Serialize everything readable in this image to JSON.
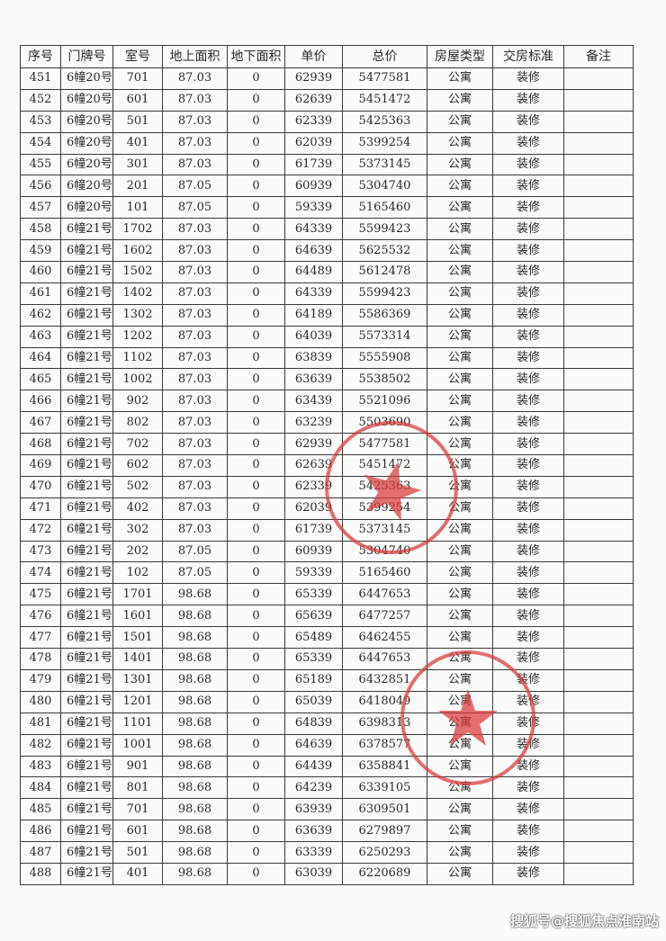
{
  "table": {
    "headers": [
      "序号",
      "门牌号",
      "室号",
      "地上面积",
      "地下面积",
      "单价",
      "总价",
      "房屋类型",
      "交房标准",
      "备注"
    ],
    "rows": [
      [
        "451",
        "6幢20号",
        "701",
        "87.03",
        "0",
        "62939",
        "5477581",
        "公寓",
        "装修",
        ""
      ],
      [
        "452",
        "6幢20号",
        "601",
        "87.03",
        "0",
        "62639",
        "5451472",
        "公寓",
        "装修",
        ""
      ],
      [
        "453",
        "6幢20号",
        "501",
        "87.03",
        "0",
        "62339",
        "5425363",
        "公寓",
        "装修",
        ""
      ],
      [
        "454",
        "6幢20号",
        "401",
        "87.03",
        "0",
        "62039",
        "5399254",
        "公寓",
        "装修",
        ""
      ],
      [
        "455",
        "6幢20号",
        "301",
        "87.03",
        "0",
        "61739",
        "5373145",
        "公寓",
        "装修",
        ""
      ],
      [
        "456",
        "6幢20号",
        "201",
        "87.05",
        "0",
        "60939",
        "5304740",
        "公寓",
        "装修",
        ""
      ],
      [
        "457",
        "6幢20号",
        "101",
        "87.05",
        "0",
        "59339",
        "5165460",
        "公寓",
        "装修",
        ""
      ],
      [
        "458",
        "6幢21号",
        "1702",
        "87.03",
        "0",
        "64339",
        "5599423",
        "公寓",
        "装修",
        ""
      ],
      [
        "459",
        "6幢21号",
        "1602",
        "87.03",
        "0",
        "64639",
        "5625532",
        "公寓",
        "装修",
        ""
      ],
      [
        "460",
        "6幢21号",
        "1502",
        "87.03",
        "0",
        "64489",
        "5612478",
        "公寓",
        "装修",
        ""
      ],
      [
        "461",
        "6幢21号",
        "1402",
        "87.03",
        "0",
        "64339",
        "5599423",
        "公寓",
        "装修",
        ""
      ],
      [
        "462",
        "6幢21号",
        "1302",
        "87.03",
        "0",
        "64189",
        "5586369",
        "公寓",
        "装修",
        ""
      ],
      [
        "463",
        "6幢21号",
        "1202",
        "87.03",
        "0",
        "64039",
        "5573314",
        "公寓",
        "装修",
        ""
      ],
      [
        "464",
        "6幢21号",
        "1102",
        "87.03",
        "0",
        "63839",
        "5555908",
        "公寓",
        "装修",
        ""
      ],
      [
        "465",
        "6幢21号",
        "1002",
        "87.03",
        "0",
        "63639",
        "5538502",
        "公寓",
        "装修",
        ""
      ],
      [
        "466",
        "6幢21号",
        "902",
        "87.03",
        "0",
        "63439",
        "5521096",
        "公寓",
        "装修",
        ""
      ],
      [
        "467",
        "6幢21号",
        "802",
        "87.03",
        "0",
        "63239",
        "5503690",
        "公寓",
        "装修",
        ""
      ],
      [
        "468",
        "6幢21号",
        "702",
        "87.03",
        "0",
        "62939",
        "5477581",
        "公寓",
        "装修",
        ""
      ],
      [
        "469",
        "6幢21号",
        "602",
        "87.03",
        "0",
        "62639",
        "5451472",
        "公寓",
        "装修",
        ""
      ],
      [
        "470",
        "6幢21号",
        "502",
        "87.03",
        "0",
        "62339",
        "5425363",
        "公寓",
        "装修",
        ""
      ],
      [
        "471",
        "6幢21号",
        "402",
        "87.03",
        "0",
        "62039",
        "5399254",
        "公寓",
        "装修",
        ""
      ],
      [
        "472",
        "6幢21号",
        "302",
        "87.03",
        "0",
        "61739",
        "5373145",
        "公寓",
        "装修",
        ""
      ],
      [
        "473",
        "6幢21号",
        "202",
        "87.05",
        "0",
        "60939",
        "5304740",
        "公寓",
        "装修",
        ""
      ],
      [
        "474",
        "6幢21号",
        "102",
        "87.05",
        "0",
        "59339",
        "5165460",
        "公寓",
        "装修",
        ""
      ],
      [
        "475",
        "6幢21号",
        "1701",
        "98.68",
        "0",
        "65339",
        "6447653",
        "公寓",
        "装修",
        ""
      ],
      [
        "476",
        "6幢21号",
        "1601",
        "98.68",
        "0",
        "65639",
        "6477257",
        "公寓",
        "装修",
        ""
      ],
      [
        "477",
        "6幢21号",
        "1501",
        "98.68",
        "0",
        "65489",
        "6462455",
        "公寓",
        "装修",
        ""
      ],
      [
        "478",
        "6幢21号",
        "1401",
        "98.68",
        "0",
        "65339",
        "6447653",
        "公寓",
        "装修",
        ""
      ],
      [
        "479",
        "6幢21号",
        "1301",
        "98.68",
        "0",
        "65189",
        "6432851",
        "公寓",
        "装修",
        ""
      ],
      [
        "480",
        "6幢21号",
        "1201",
        "98.68",
        "0",
        "65039",
        "6418049",
        "公寓",
        "装修",
        ""
      ],
      [
        "481",
        "6幢21号",
        "1101",
        "98.68",
        "0",
        "64839",
        "6398313",
        "公寓",
        "装修",
        ""
      ],
      [
        "482",
        "6幢21号",
        "1001",
        "98.68",
        "0",
        "64639",
        "6378577",
        "公寓",
        "装修",
        ""
      ],
      [
        "483",
        "6幢21号",
        "901",
        "98.68",
        "0",
        "64439",
        "6358841",
        "公寓",
        "装修",
        ""
      ],
      [
        "484",
        "6幢21号",
        "801",
        "98.68",
        "0",
        "64239",
        "6339105",
        "公寓",
        "装修",
        ""
      ],
      [
        "485",
        "6幢21号",
        "701",
        "98.68",
        "0",
        "63939",
        "6309501",
        "公寓",
        "装修",
        ""
      ],
      [
        "486",
        "6幢21号",
        "601",
        "98.68",
        "0",
        "63639",
        "6279897",
        "公寓",
        "装修",
        ""
      ],
      [
        "487",
        "6幢21号",
        "501",
        "98.68",
        "0",
        "63339",
        "6250293",
        "公寓",
        "装修",
        ""
      ],
      [
        "488",
        "6幢21号",
        "401",
        "98.68",
        "0",
        "63039",
        "6220689",
        "公寓",
        "装修",
        ""
      ]
    ]
  },
  "stamp_color": "#d9383a",
  "watermark": "搜狐号@搜狐焦点淮南站"
}
